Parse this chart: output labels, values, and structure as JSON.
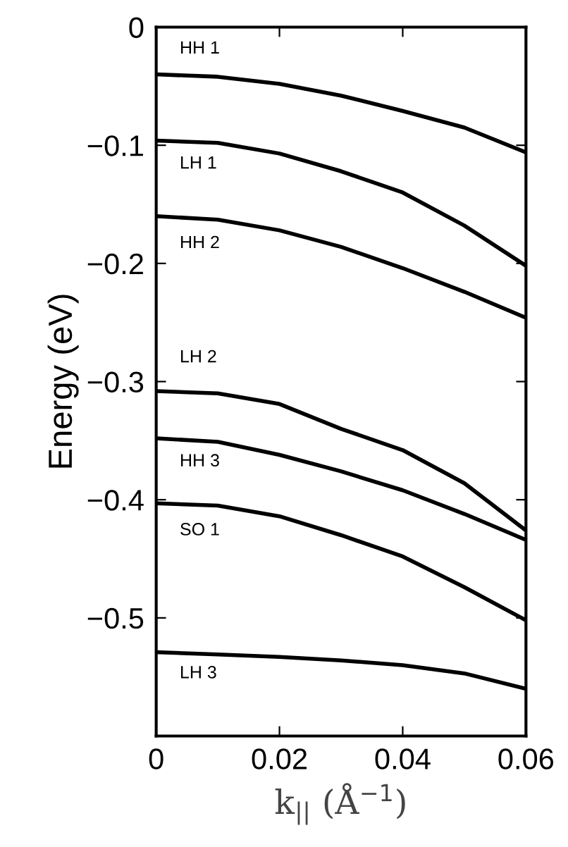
{
  "chart_data": {
    "type": "line",
    "xlabel": "k$_{||}$ (Å$^{−1}$)",
    "ylabel": "Energy (eV)",
    "x": [
      0,
      0.01,
      0.02,
      0.03,
      0.04,
      0.05,
      0.06
    ],
    "series": [
      {
        "name": "HH 1",
        "color": "#000000",
        "values": [
          -0.04,
          -0.042,
          -0.048,
          -0.058,
          -0.071,
          -0.085,
          -0.106
        ]
      },
      {
        "name": "LH 1",
        "color": "#000000",
        "values": [
          -0.096,
          -0.098,
          -0.107,
          -0.122,
          -0.14,
          -0.168,
          -0.202
        ]
      },
      {
        "name": "HH 2",
        "color": "#000000",
        "values": [
          -0.16,
          -0.163,
          -0.172,
          -0.186,
          -0.204,
          -0.224,
          -0.246
        ]
      },
      {
        "name": "LH 2",
        "color": "#000000",
        "values": [
          -0.308,
          -0.31,
          -0.319,
          -0.34,
          -0.358,
          -0.386,
          -0.426
        ]
      },
      {
        "name": "HH 3",
        "color": "#000000",
        "values": [
          -0.348,
          -0.351,
          -0.362,
          -0.376,
          -0.392,
          -0.412,
          -0.434
        ]
      },
      {
        "name": "SO 1",
        "color": "#000000",
        "values": [
          -0.403,
          -0.405,
          -0.414,
          -0.43,
          -0.448,
          -0.474,
          -0.502
        ]
      },
      {
        "name": "LH 3",
        "color": "#000000",
        "values": [
          -0.529,
          -0.531,
          -0.533,
          -0.536,
          -0.54,
          -0.547,
          -0.56
        ]
      }
    ],
    "xlim": [
      0,
      0.06
    ],
    "xticks": [
      0,
      0.02,
      0.04,
      0.06
    ],
    "ylim": [
      -0.6,
      0
    ],
    "yticks": [
      0,
      -0.1,
      -0.2,
      -0.3,
      -0.4,
      -0.5
    ],
    "grid": false,
    "legend": false,
    "marker": "none",
    "line_style": "solid"
  }
}
